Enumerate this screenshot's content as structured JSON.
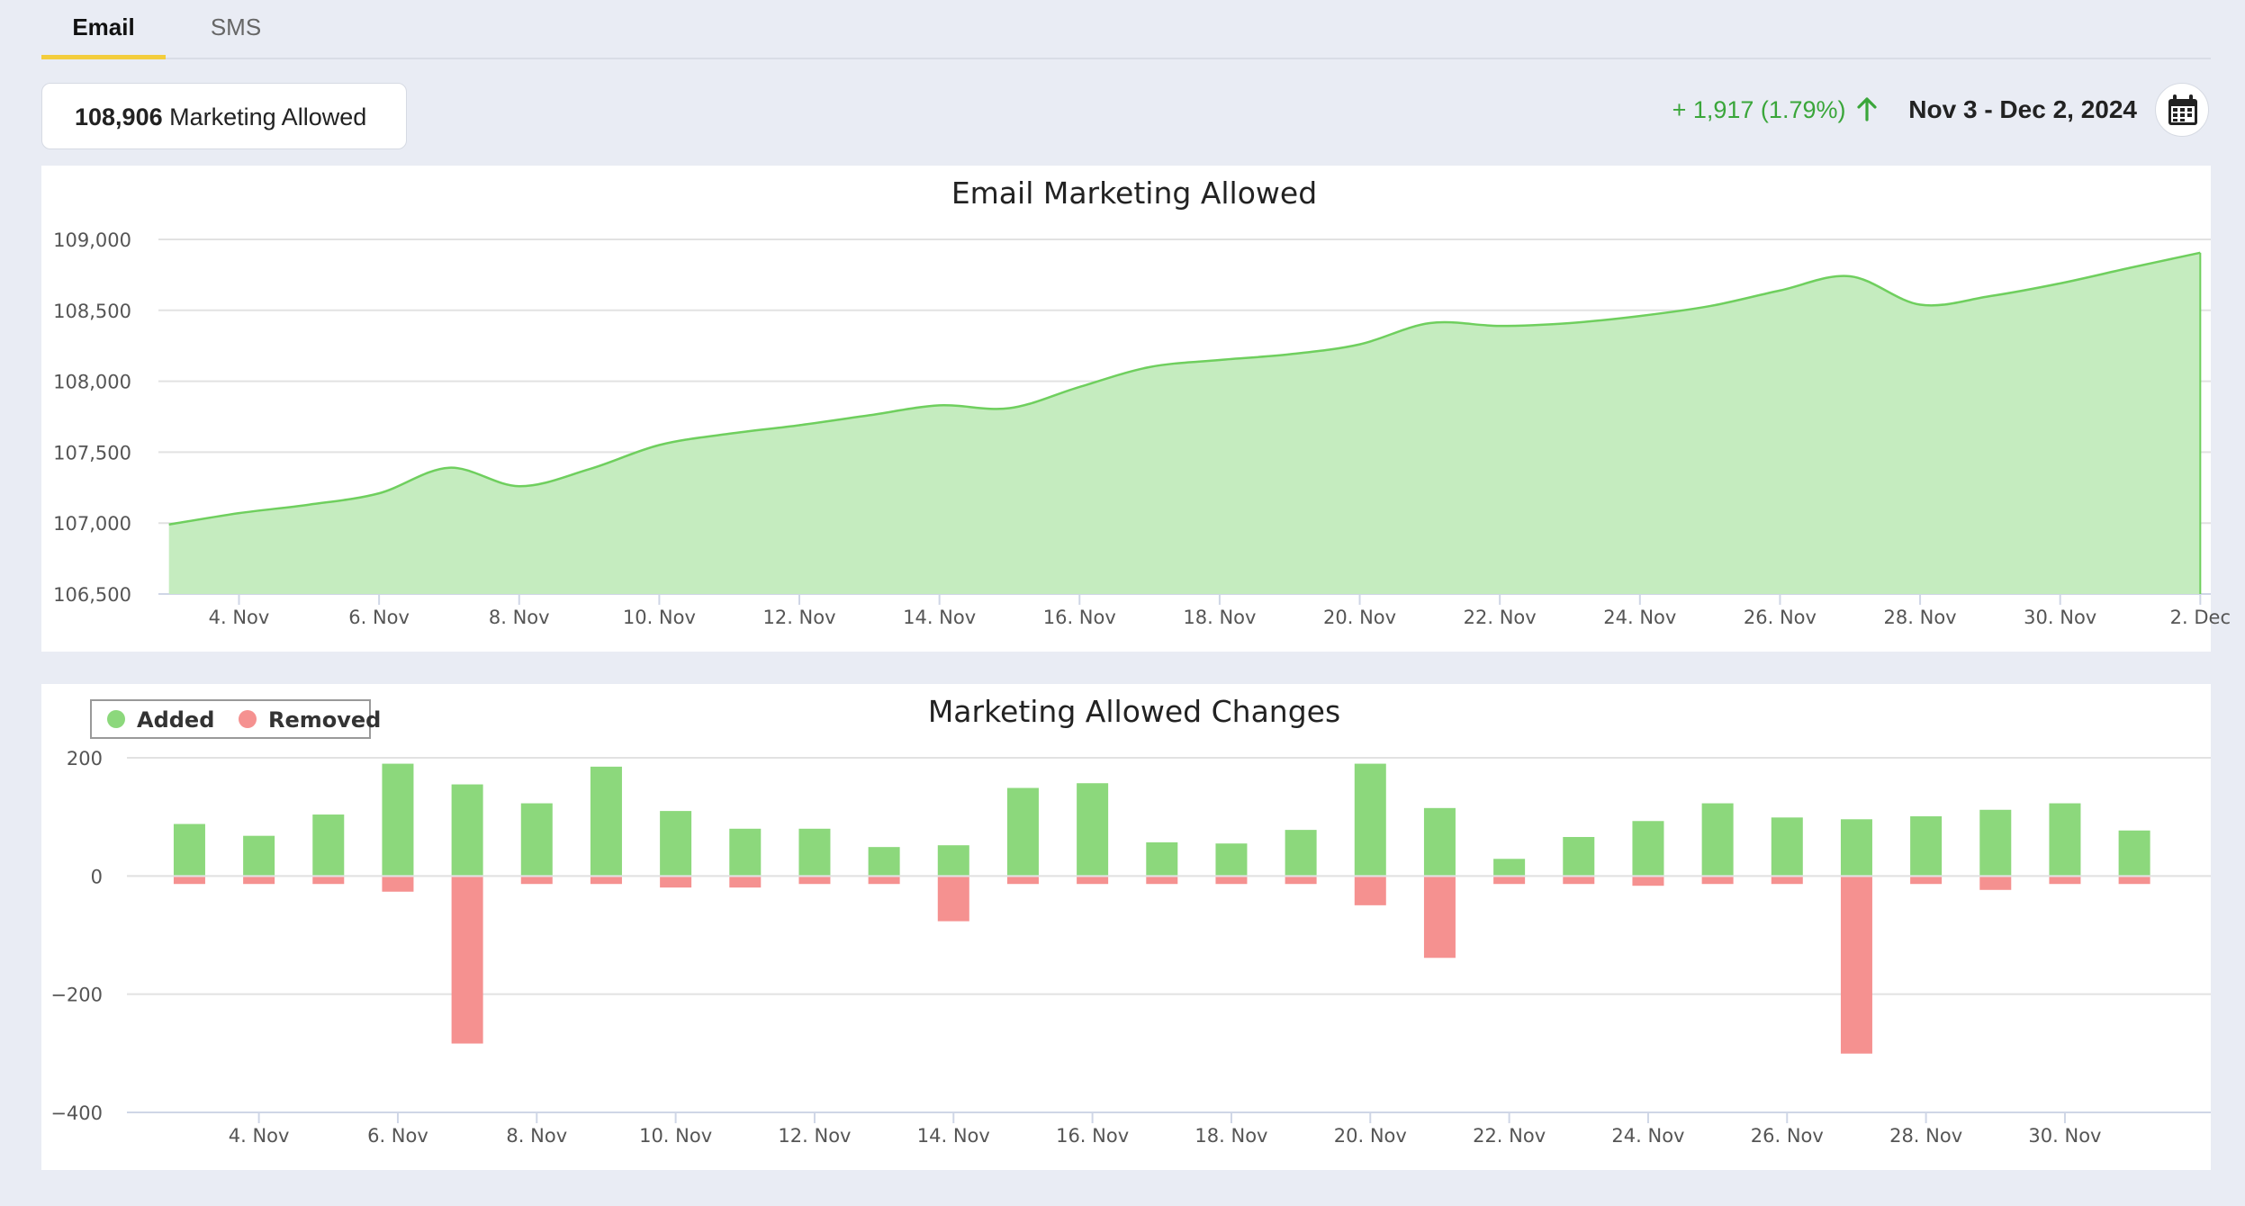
{
  "tabs": [
    {
      "label": "Email",
      "active": true
    },
    {
      "label": "SMS",
      "active": false
    }
  ],
  "summary": {
    "value": "108,906",
    "label": "Marketing Allowed"
  },
  "change": {
    "text": "+ 1,917 (1.79%)",
    "color": "#3aa63a"
  },
  "date_range": "Nov 3 - Dec 2, 2024",
  "calendar_icon": "calendar-icon",
  "chart_data": [
    {
      "type": "area",
      "title": "Email Marketing Allowed",
      "xlabel": "",
      "ylabel": "",
      "color": "#6fcf5e",
      "fill": "#c5ecbf",
      "ylim": [
        106500,
        109000
      ],
      "yticks": [
        106500,
        107000,
        107500,
        108000,
        108500,
        109000
      ],
      "ytick_labels": [
        "106,500",
        "107,000",
        "107,500",
        "108,000",
        "108,500",
        "109,000"
      ],
      "xlim": [
        2.85,
        32.15
      ],
      "xticks": [
        4,
        6,
        8,
        10,
        12,
        14,
        16,
        18,
        20,
        22,
        24,
        26,
        28,
        30,
        32
      ],
      "xtick_labels": [
        "4. Nov",
        "6. Nov",
        "8. Nov",
        "10. Nov",
        "12. Nov",
        "14. Nov",
        "16. Nov",
        "18. Nov",
        "20. Nov",
        "22. Nov",
        "24. Nov",
        "26. Nov",
        "28. Nov",
        "30. Nov",
        "2. Dec"
      ],
      "x": [
        3,
        4,
        5,
        6,
        7,
        8,
        9,
        10,
        11,
        12,
        13,
        14,
        15,
        16,
        17,
        18,
        19,
        20,
        21,
        22,
        23,
        24,
        25,
        26,
        27,
        28,
        29,
        30,
        31,
        32
      ],
      "values": [
        106990,
        107070,
        107130,
        107210,
        107390,
        107260,
        107380,
        107550,
        107630,
        107690,
        107760,
        107830,
        107810,
        107960,
        108100,
        108150,
        108190,
        108260,
        108410,
        108390,
        108410,
        108460,
        108530,
        108640,
        108740,
        108540,
        108600,
        108690,
        108800,
        108906
      ],
      "grid": true,
      "legend": "none"
    },
    {
      "type": "bar",
      "title": "Marketing Allowed Changes",
      "xlabel": "",
      "ylabel": "",
      "ylim": [
        -400,
        200
      ],
      "yticks": [
        -400,
        -200,
        0,
        200
      ],
      "ytick_labels": [
        "−400",
        "−200",
        "0",
        "200"
      ],
      "xlim": [
        2.1,
        32.1
      ],
      "xticks": [
        4,
        6,
        8,
        10,
        12,
        14,
        16,
        18,
        20,
        22,
        24,
        26,
        28,
        30
      ],
      "xtick_labels": [
        "4. Nov",
        "6. Nov",
        "8. Nov",
        "10. Nov",
        "12. Nov",
        "14. Nov",
        "16. Nov",
        "18. Nov",
        "20. Nov",
        "22. Nov",
        "24. Nov",
        "26. Nov",
        "28. Nov",
        "30. Nov"
      ],
      "x": [
        3,
        4,
        5,
        6,
        7,
        8,
        9,
        10,
        11,
        12,
        13,
        14,
        15,
        16,
        17,
        18,
        19,
        20,
        21,
        22,
        23,
        24,
        25,
        26,
        27,
        28,
        29,
        30,
        31
      ],
      "series": [
        {
          "name": "Added",
          "color": "#8cd87c",
          "values": [
            88,
            68,
            104,
            190,
            155,
            123,
            185,
            110,
            80,
            80,
            49,
            52,
            149,
            157,
            57,
            55,
            78,
            190,
            115,
            29,
            66,
            93,
            123,
            99,
            96,
            101,
            112,
            123,
            77
          ]
        },
        {
          "name": "Removed",
          "color": "#f59190",
          "values": [
            -12,
            -12,
            -12,
            -25,
            -282,
            -12,
            -12,
            -18,
            -18,
            -12,
            -12,
            -75,
            -12,
            -12,
            -12,
            -12,
            -12,
            -48,
            -137,
            -12,
            -12,
            -15,
            -12,
            -12,
            -299,
            -12,
            -22,
            -12,
            -12
          ]
        }
      ],
      "grid": true,
      "legend": "top-left"
    }
  ]
}
